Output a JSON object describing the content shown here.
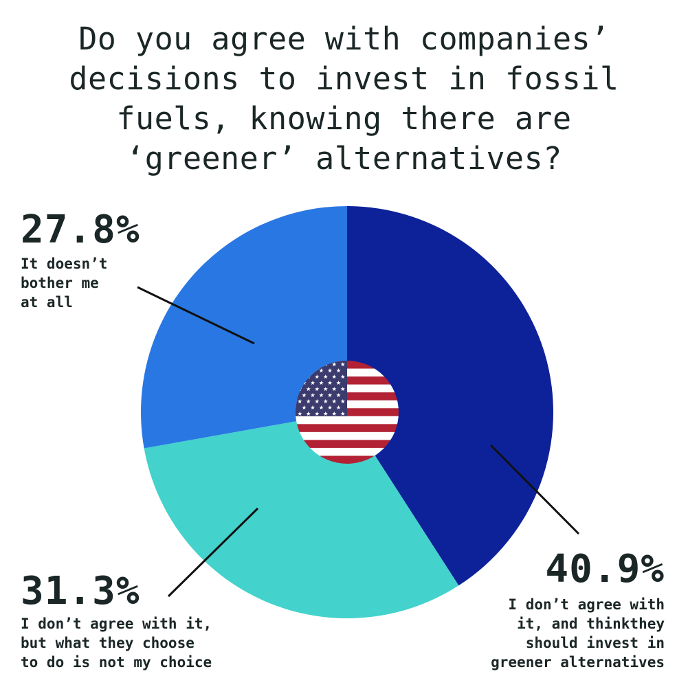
{
  "title_lines": [
    "Do you agree with companies’",
    "decisions to invest in fossil",
    "fuels, knowing there are",
    "‘greener’ alternatives?"
  ],
  "chart_data": {
    "type": "pie",
    "title": "Do you agree with companies’ decisions to invest in fossil fuels, knowing there are ‘greener’ alternatives?",
    "slices": [
      {
        "label": "I don’t agree with it, and thinkthey should invest in greener alternatives",
        "value": 40.9,
        "value_label": "40.9%",
        "label_lines": [
          "I don’t agree with",
          "it, and thinkthey",
          "should invest in",
          "greener alternatives"
        ],
        "color": "#0d2299"
      },
      {
        "label": "I don’t agree with it, but what they choose to do is not my choice",
        "value": 31.3,
        "value_label": "31.3%",
        "label_lines": [
          "I don’t agree with it,",
          "but what they choose",
          "to do is not my choice"
        ],
        "color": "#43d2cc"
      },
      {
        "label": "It doesn’t bother me at all",
        "value": 27.8,
        "value_label": "27.8%",
        "label_lines": [
          "It doesn’t",
          "bother me",
          "at all"
        ],
        "color": "#2977e3"
      }
    ],
    "start_angle": "12 o'clock",
    "direction": "clockwise",
    "center_emblem": "us-flag"
  },
  "colors": {
    "text": "#1b2626",
    "leader_line": "#111111",
    "flag_red": "#b22234",
    "flag_white": "#ffffff",
    "flag_blue": "#3c3b6e"
  }
}
